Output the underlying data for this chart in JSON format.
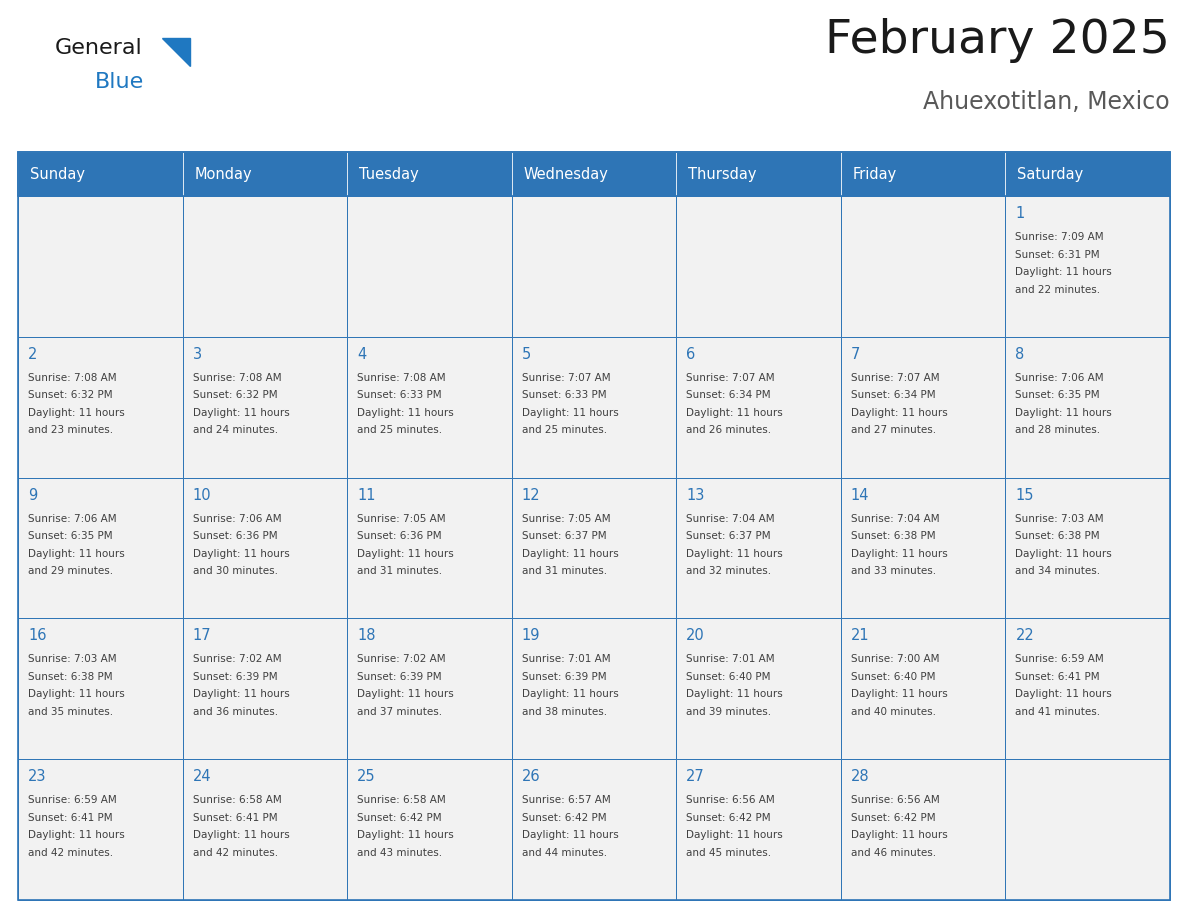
{
  "title": "February 2025",
  "subtitle": "Ahuexotitlan, Mexico",
  "days_of_week": [
    "Sunday",
    "Monday",
    "Tuesday",
    "Wednesday",
    "Thursday",
    "Friday",
    "Saturday"
  ],
  "header_color": "#2E75B6",
  "header_text_color": "#FFFFFF",
  "cell_bg_color": "#F2F2F2",
  "border_color": "#2E75B6",
  "title_color": "#1a1a1a",
  "subtitle_color": "#595959",
  "day_num_color": "#2E75B6",
  "cell_text_color": "#404040",
  "logo_general_color": "#1a1a1a",
  "logo_blue_color": "#1F78C1",
  "weeks": [
    [
      null,
      null,
      null,
      null,
      null,
      null,
      {
        "day": 1,
        "sunrise": "7:09 AM",
        "sunset": "6:31 PM",
        "daylight": "11 hours and 22 minutes."
      }
    ],
    [
      {
        "day": 2,
        "sunrise": "7:08 AM",
        "sunset": "6:32 PM",
        "daylight": "11 hours and 23 minutes."
      },
      {
        "day": 3,
        "sunrise": "7:08 AM",
        "sunset": "6:32 PM",
        "daylight": "11 hours and 24 minutes."
      },
      {
        "day": 4,
        "sunrise": "7:08 AM",
        "sunset": "6:33 PM",
        "daylight": "11 hours and 25 minutes."
      },
      {
        "day": 5,
        "sunrise": "7:07 AM",
        "sunset": "6:33 PM",
        "daylight": "11 hours and 25 minutes."
      },
      {
        "day": 6,
        "sunrise": "7:07 AM",
        "sunset": "6:34 PM",
        "daylight": "11 hours and 26 minutes."
      },
      {
        "day": 7,
        "sunrise": "7:07 AM",
        "sunset": "6:34 PM",
        "daylight": "11 hours and 27 minutes."
      },
      {
        "day": 8,
        "sunrise": "7:06 AM",
        "sunset": "6:35 PM",
        "daylight": "11 hours and 28 minutes."
      }
    ],
    [
      {
        "day": 9,
        "sunrise": "7:06 AM",
        "sunset": "6:35 PM",
        "daylight": "11 hours and 29 minutes."
      },
      {
        "day": 10,
        "sunrise": "7:06 AM",
        "sunset": "6:36 PM",
        "daylight": "11 hours and 30 minutes."
      },
      {
        "day": 11,
        "sunrise": "7:05 AM",
        "sunset": "6:36 PM",
        "daylight": "11 hours and 31 minutes."
      },
      {
        "day": 12,
        "sunrise": "7:05 AM",
        "sunset": "6:37 PM",
        "daylight": "11 hours and 31 minutes."
      },
      {
        "day": 13,
        "sunrise": "7:04 AM",
        "sunset": "6:37 PM",
        "daylight": "11 hours and 32 minutes."
      },
      {
        "day": 14,
        "sunrise": "7:04 AM",
        "sunset": "6:38 PM",
        "daylight": "11 hours and 33 minutes."
      },
      {
        "day": 15,
        "sunrise": "7:03 AM",
        "sunset": "6:38 PM",
        "daylight": "11 hours and 34 minutes."
      }
    ],
    [
      {
        "day": 16,
        "sunrise": "7:03 AM",
        "sunset": "6:38 PM",
        "daylight": "11 hours and 35 minutes."
      },
      {
        "day": 17,
        "sunrise": "7:02 AM",
        "sunset": "6:39 PM",
        "daylight": "11 hours and 36 minutes."
      },
      {
        "day": 18,
        "sunrise": "7:02 AM",
        "sunset": "6:39 PM",
        "daylight": "11 hours and 37 minutes."
      },
      {
        "day": 19,
        "sunrise": "7:01 AM",
        "sunset": "6:39 PM",
        "daylight": "11 hours and 38 minutes."
      },
      {
        "day": 20,
        "sunrise": "7:01 AM",
        "sunset": "6:40 PM",
        "daylight": "11 hours and 39 minutes."
      },
      {
        "day": 21,
        "sunrise": "7:00 AM",
        "sunset": "6:40 PM",
        "daylight": "11 hours and 40 minutes."
      },
      {
        "day": 22,
        "sunrise": "6:59 AM",
        "sunset": "6:41 PM",
        "daylight": "11 hours and 41 minutes."
      }
    ],
    [
      {
        "day": 23,
        "sunrise": "6:59 AM",
        "sunset": "6:41 PM",
        "daylight": "11 hours and 42 minutes."
      },
      {
        "day": 24,
        "sunrise": "6:58 AM",
        "sunset": "6:41 PM",
        "daylight": "11 hours and 42 minutes."
      },
      {
        "day": 25,
        "sunrise": "6:58 AM",
        "sunset": "6:42 PM",
        "daylight": "11 hours and 43 minutes."
      },
      {
        "day": 26,
        "sunrise": "6:57 AM",
        "sunset": "6:42 PM",
        "daylight": "11 hours and 44 minutes."
      },
      {
        "day": 27,
        "sunrise": "6:56 AM",
        "sunset": "6:42 PM",
        "daylight": "11 hours and 45 minutes."
      },
      {
        "day": 28,
        "sunrise": "6:56 AM",
        "sunset": "6:42 PM",
        "daylight": "11 hours and 46 minutes."
      },
      null
    ]
  ],
  "fig_width": 11.88,
  "fig_height": 9.18,
  "dpi": 100
}
